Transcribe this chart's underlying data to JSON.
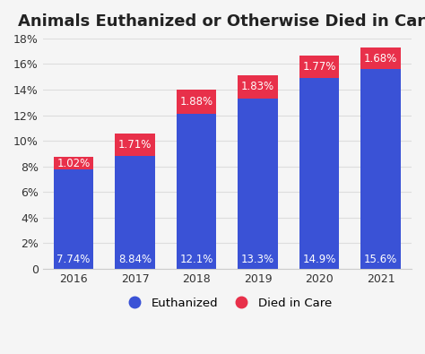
{
  "title": "Animals Euthanized or Otherwise Died in Care",
  "categories": [
    "2016",
    "2017",
    "2018",
    "2019",
    "2020",
    "2021"
  ],
  "euthanized": [
    7.74,
    8.84,
    12.1,
    13.3,
    14.9,
    15.6
  ],
  "died_in_care": [
    1.02,
    1.71,
    1.88,
    1.83,
    1.77,
    1.68
  ],
  "euthanized_labels": [
    "7.74%",
    "8.84%",
    "12.1%",
    "13.3%",
    "14.9%",
    "15.6%"
  ],
  "died_labels": [
    "1.02%",
    "1.71%",
    "1.88%",
    "1.83%",
    "1.77%",
    "1.68%"
  ],
  "color_euthanized": "#3a52d6",
  "color_died": "#e8304a",
  "ylim": [
    0,
    18
  ],
  "yticks": [
    0,
    2,
    4,
    6,
    8,
    10,
    12,
    14,
    16,
    18
  ],
  "ytick_labels": [
    "0",
    "2%",
    "4%",
    "6%",
    "8%",
    "10%",
    "12%",
    "14%",
    "16%",
    "18%"
  ],
  "background_color": "#f5f5f5",
  "title_fontsize": 13,
  "label_fontsize": 8.5,
  "tick_fontsize": 9,
  "legend_label_euthanized": "Euthanized",
  "legend_label_died": "Died in Care"
}
